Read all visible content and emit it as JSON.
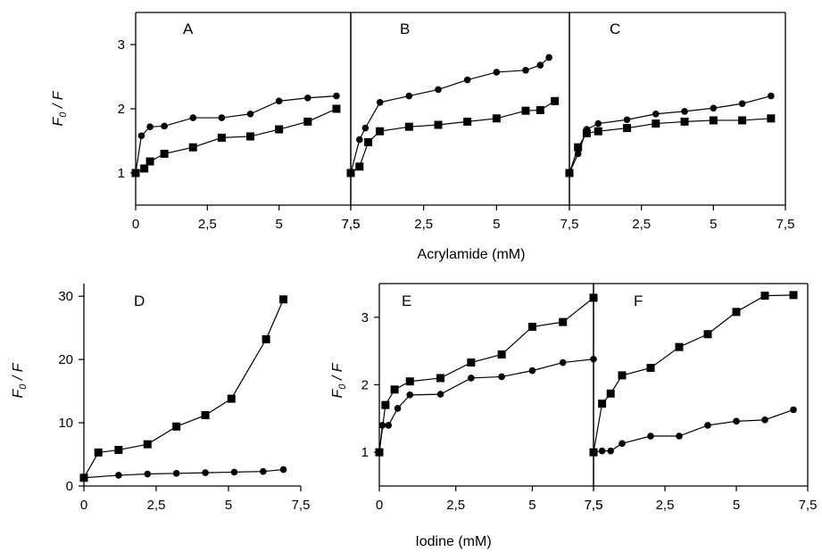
{
  "chart_data": [
    {
      "id": "A",
      "type": "line",
      "panel_label": "A",
      "xlim": [
        0,
        7.5
      ],
      "ylim": [
        0.5,
        3.5
      ],
      "xticks": [
        "0",
        "2,5",
        "5",
        "7,5"
      ],
      "yticks": [
        "1",
        "2",
        "3"
      ],
      "ylabel_main": "F",
      "ylabel_sub": "0",
      "ylabel_rest": " / F",
      "series": [
        {
          "marker": "square",
          "x": [
            0,
            0.3,
            0.5,
            1,
            2,
            3,
            4,
            5,
            6,
            7
          ],
          "y": [
            1.0,
            1.07,
            1.18,
            1.3,
            1.4,
            1.55,
            1.57,
            1.68,
            1.8,
            2.0
          ]
        },
        {
          "marker": "circle",
          "x": [
            0,
            0.2,
            0.5,
            1,
            2,
            3,
            4,
            5,
            6,
            7
          ],
          "y": [
            1.0,
            1.58,
            1.72,
            1.73,
            1.86,
            1.86,
            1.92,
            2.12,
            2.17,
            2.2
          ]
        }
      ]
    },
    {
      "id": "B",
      "type": "line",
      "panel_label": "B",
      "xlim": [
        0,
        7.5
      ],
      "ylim": [
        0.5,
        3.5
      ],
      "xticks": [
        "7,5",
        "2,5",
        "5",
        ""
      ],
      "yticks": [],
      "series": [
        {
          "marker": "square",
          "x": [
            0,
            0.3,
            0.6,
            1,
            2,
            3,
            4,
            5,
            6,
            6.5,
            7
          ],
          "y": [
            1.0,
            1.1,
            1.48,
            1.65,
            1.72,
            1.75,
            1.8,
            1.85,
            1.97,
            1.98,
            2.12
          ]
        },
        {
          "marker": "circle",
          "x": [
            0,
            0.3,
            0.5,
            1,
            2,
            3,
            4,
            5,
            6,
            6.5,
            6.8
          ],
          "y": [
            1.0,
            1.52,
            1.7,
            2.1,
            2.2,
            2.3,
            2.45,
            2.57,
            2.6,
            2.68,
            2.8
          ]
        }
      ]
    },
    {
      "id": "C",
      "type": "line",
      "panel_label": "C",
      "xlim": [
        0,
        7.5
      ],
      "ylim": [
        0.5,
        3.5
      ],
      "xticks": [
        "7,5",
        "2,5",
        "5",
        "7,5"
      ],
      "yticks": [],
      "series": [
        {
          "marker": "square",
          "x": [
            0,
            0.3,
            0.6,
            1,
            2,
            3,
            4,
            5,
            6,
            7
          ],
          "y": [
            1.0,
            1.4,
            1.62,
            1.65,
            1.7,
            1.77,
            1.8,
            1.82,
            1.82,
            1.85
          ]
        },
        {
          "marker": "circle",
          "x": [
            0,
            0.3,
            0.6,
            1,
            2,
            3,
            4,
            5,
            6,
            7
          ],
          "y": [
            1.0,
            1.3,
            1.68,
            1.77,
            1.83,
            1.92,
            1.96,
            2.01,
            2.08,
            2.2
          ]
        }
      ]
    },
    {
      "id": "D",
      "type": "line",
      "panel_label": "D",
      "xlim": [
        0,
        7.5
      ],
      "ylim": [
        0,
        32
      ],
      "xticks": [
        "0",
        "2,5",
        "5",
        "7,5"
      ],
      "yticks": [
        "0",
        "10",
        "20",
        "30"
      ],
      "ylabel_main": "F",
      "ylabel_sub": "0",
      "ylabel_rest": " / F",
      "series": [
        {
          "marker": "square",
          "x": [
            0,
            0.5,
            1.2,
            2.2,
            3.2,
            4.2,
            5.1,
            6.3,
            6.9
          ],
          "y": [
            1.3,
            5.3,
            5.7,
            6.6,
            9.4,
            11.2,
            13.8,
            23.2,
            29.5
          ]
        },
        {
          "marker": "circle",
          "x": [
            0,
            1.2,
            2.2,
            3.2,
            4.2,
            5.2,
            6.2,
            6.9
          ],
          "y": [
            1.3,
            1.7,
            1.9,
            2.0,
            2.1,
            2.2,
            2.3,
            2.6
          ]
        }
      ]
    },
    {
      "id": "E",
      "type": "line",
      "panel_label": "E",
      "xlim": [
        0,
        7
      ],
      "ylim": [
        0.5,
        3.5
      ],
      "xticks": [
        "0",
        "2,5",
        "5",
        "7,5"
      ],
      "yticks": [
        "1",
        "2",
        "3"
      ],
      "ylabel_main": "F",
      "ylabel_sub": "0",
      "ylabel_rest": " / F",
      "series": [
        {
          "marker": "square",
          "x": [
            0,
            0.2,
            0.5,
            1,
            2,
            3,
            4,
            5,
            6,
            7
          ],
          "y": [
            1.0,
            1.7,
            1.93,
            2.05,
            2.1,
            2.33,
            2.45,
            2.86,
            2.93,
            3.29
          ]
        },
        {
          "marker": "circle",
          "x": [
            0,
            0.1,
            0.3,
            0.6,
            1,
            2,
            3,
            4,
            5,
            6,
            7
          ],
          "y": [
            1.0,
            1.4,
            1.4,
            1.65,
            1.85,
            1.86,
            2.1,
            2.12,
            2.21,
            2.33,
            2.38
          ]
        }
      ]
    },
    {
      "id": "F",
      "type": "line",
      "panel_label": "F",
      "xlim": [
        0,
        7.5
      ],
      "ylim": [
        0.5,
        3.5
      ],
      "xticks": [
        "7,5",
        "2,5",
        "5",
        "7,5"
      ],
      "yticks": [],
      "series": [
        {
          "marker": "square",
          "x": [
            0,
            0.3,
            0.6,
            1,
            2,
            3,
            4,
            5,
            6,
            7
          ],
          "y": [
            1.0,
            1.72,
            1.87,
            2.14,
            2.25,
            2.56,
            2.75,
            3.08,
            3.32,
            3.33
          ]
        },
        {
          "marker": "circle",
          "x": [
            0,
            0.3,
            0.6,
            1,
            2,
            3,
            4,
            5,
            6,
            7
          ],
          "y": [
            1.0,
            1.02,
            1.02,
            1.13,
            1.24,
            1.24,
            1.4,
            1.46,
            1.48,
            1.63
          ]
        }
      ]
    }
  ],
  "xlabel_top": "Acrylamide (mM)",
  "xlabel_bottom": "Iodine (mM)"
}
